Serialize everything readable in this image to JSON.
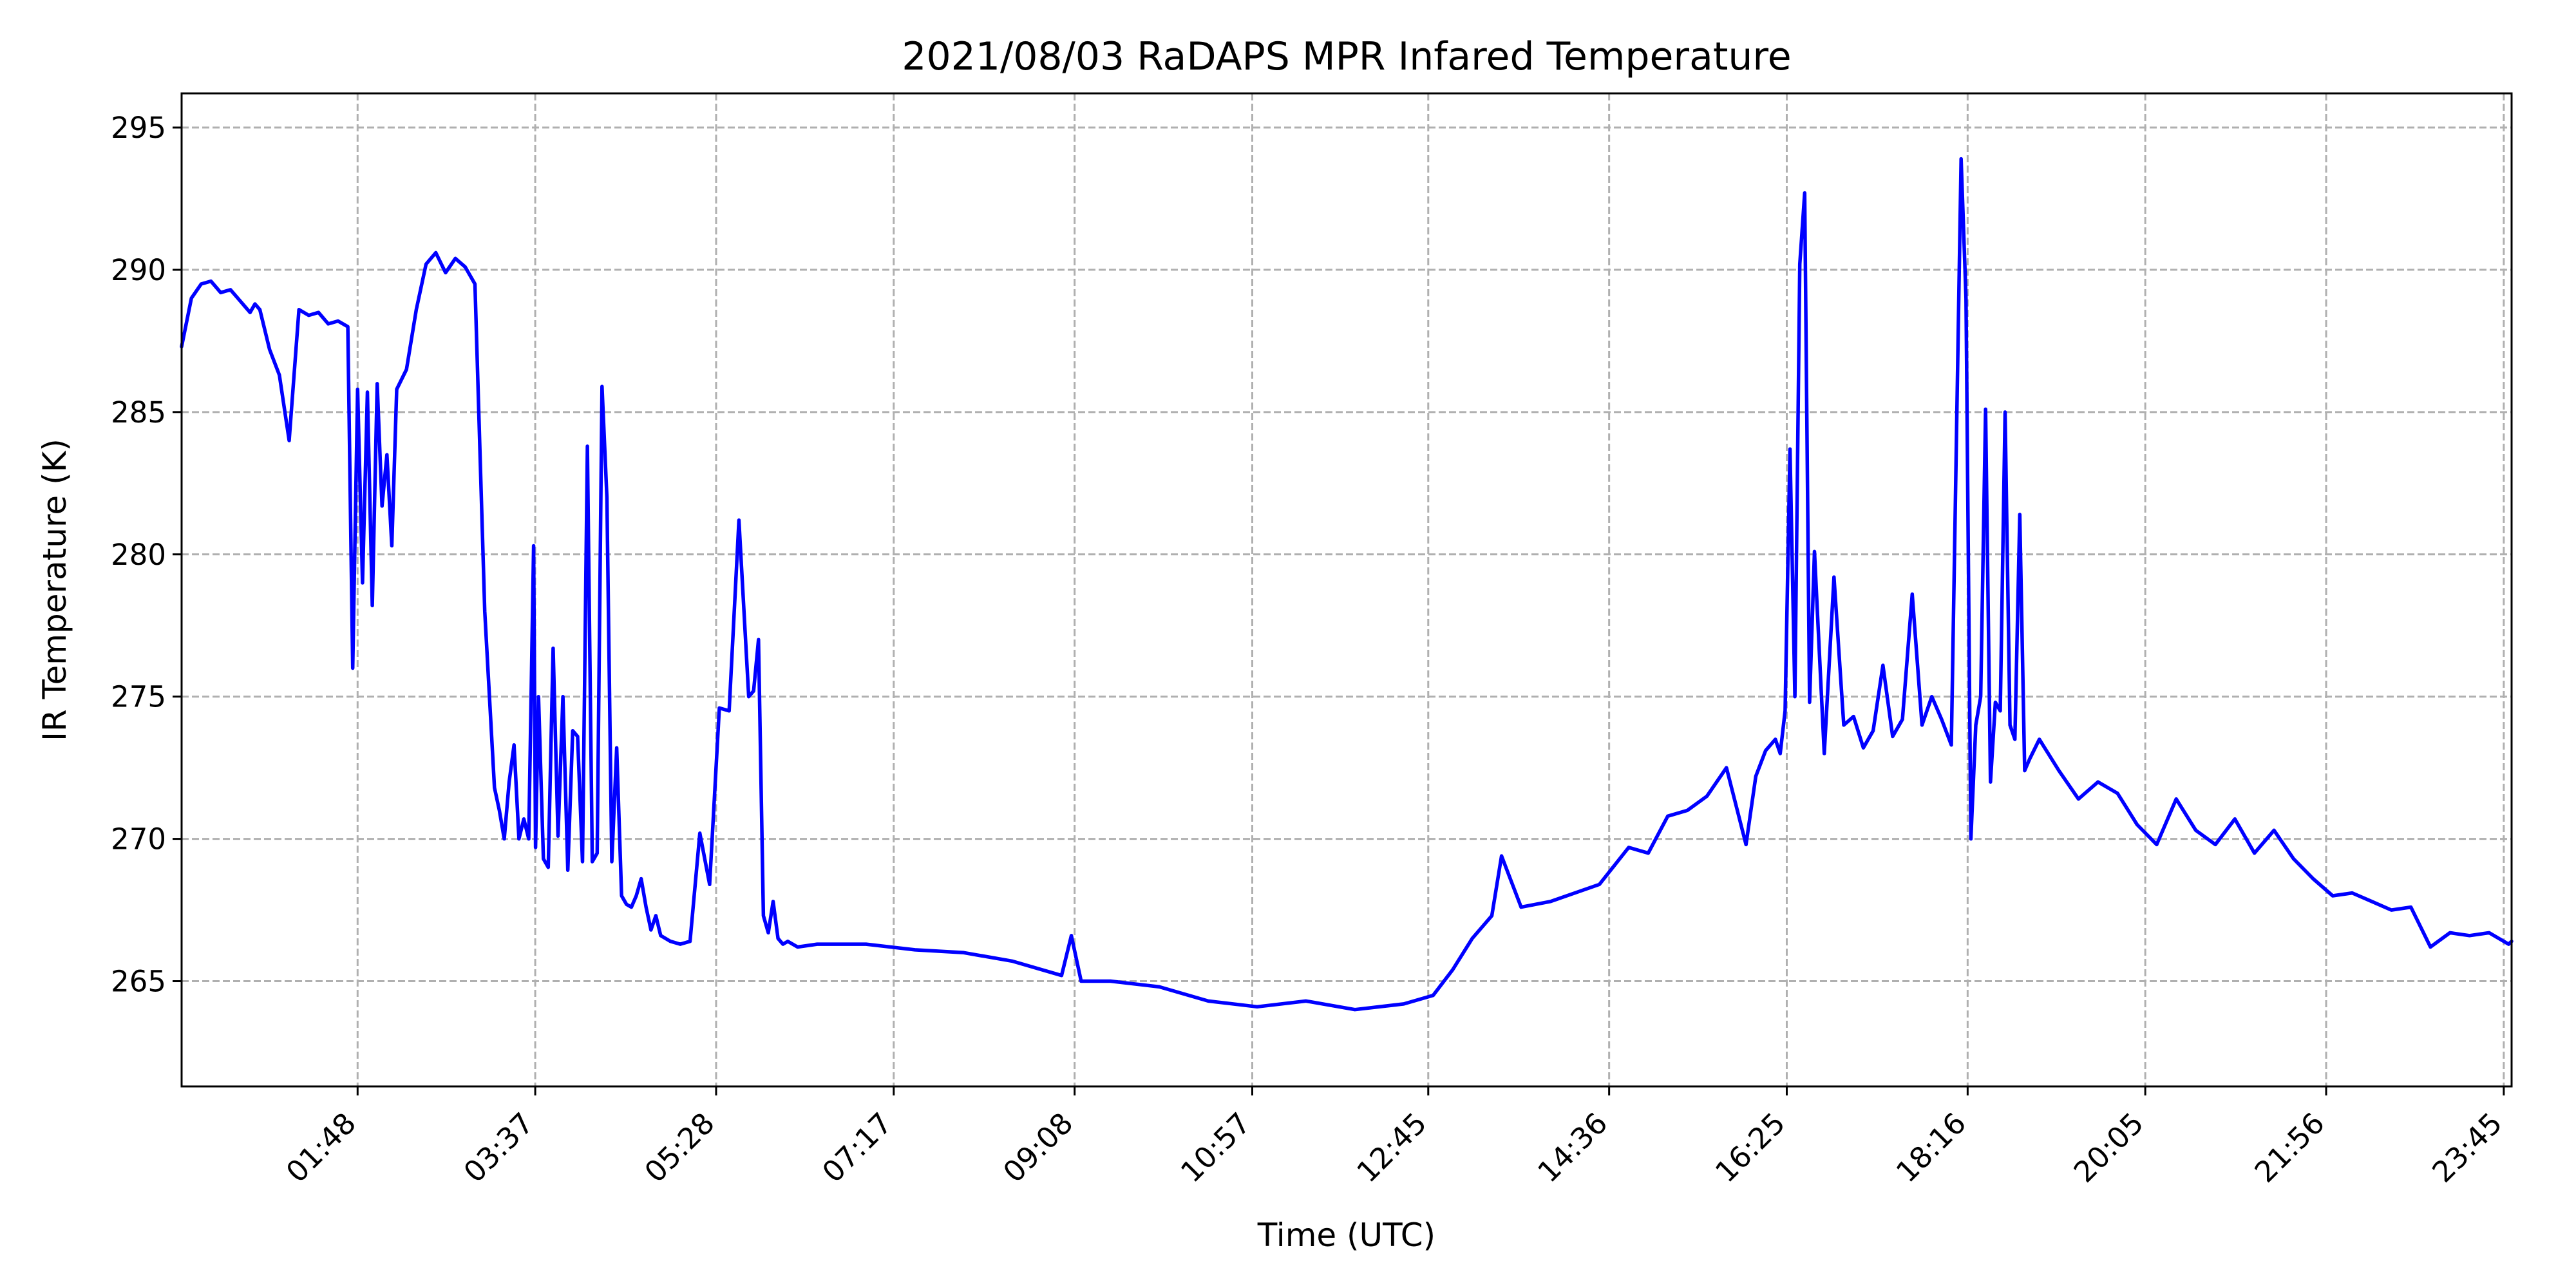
{
  "chart_data": {
    "type": "line",
    "title": "2021/08/03 RaDAPS MPR Infared Temperature",
    "xlabel": "Time (UTC)",
    "ylabel": "IR Temperature (K)",
    "x_unit": "hours UTC",
    "xlim": [
      0.0,
      23.83
    ],
    "ylim": [
      261.3,
      296.2
    ],
    "grid": true,
    "x_ticks": [
      {
        "value": 1.8,
        "label": "01:48"
      },
      {
        "value": 3.6167,
        "label": "03:37"
      },
      {
        "value": 5.4667,
        "label": "05:28"
      },
      {
        "value": 7.2833,
        "label": "07:17"
      },
      {
        "value": 9.1333,
        "label": "09:08"
      },
      {
        "value": 10.95,
        "label": "10:57"
      },
      {
        "value": 12.75,
        "label": "12:45"
      },
      {
        "value": 14.6,
        "label": "14:36"
      },
      {
        "value": 16.4167,
        "label": "16:25"
      },
      {
        "value": 18.2667,
        "label": "18:16"
      },
      {
        "value": 20.0833,
        "label": "20:05"
      },
      {
        "value": 21.9333,
        "label": "21:56"
      },
      {
        "value": 23.75,
        "label": "23:45"
      }
    ],
    "y_ticks": [
      265,
      270,
      275,
      280,
      285,
      290,
      295
    ],
    "series": [
      {
        "color": "#0000ff",
        "x": [
          0.0,
          0.1,
          0.2,
          0.3,
          0.4,
          0.5,
          0.6,
          0.7,
          0.75,
          0.8,
          0.9,
          1.0,
          1.1,
          1.2,
          1.3,
          1.4,
          1.5,
          1.6,
          1.7,
          1.75,
          1.8,
          1.85,
          1.9,
          1.95,
          2.0,
          2.05,
          2.1,
          2.15,
          2.2,
          2.3,
          2.4,
          2.5,
          2.6,
          2.7,
          2.8,
          2.9,
          3.0,
          3.1,
          3.2,
          3.25,
          3.3,
          3.35,
          3.4,
          3.45,
          3.5,
          3.55,
          3.6,
          3.62,
          3.65,
          3.7,
          3.75,
          3.8,
          3.85,
          3.9,
          3.95,
          4.0,
          4.05,
          4.1,
          4.15,
          4.2,
          4.25,
          4.3,
          4.35,
          4.4,
          4.45,
          4.5,
          4.55,
          4.6,
          4.65,
          4.7,
          4.75,
          4.8,
          4.85,
          4.9,
          5.0,
          5.1,
          5.2,
          5.3,
          5.4,
          5.5,
          5.6,
          5.7,
          5.8,
          5.85,
          5.9,
          5.95,
          6.0,
          6.05,
          6.1,
          6.15,
          6.2,
          6.3,
          6.5,
          7.0,
          7.5,
          8.0,
          8.5,
          9.0,
          9.1,
          9.2,
          9.5,
          10.0,
          10.5,
          11.0,
          11.5,
          12.0,
          12.5,
          12.8,
          13.0,
          13.2,
          13.4,
          13.5,
          13.7,
          14.0,
          14.5,
          14.8,
          15.0,
          15.2,
          15.4,
          15.6,
          15.8,
          16.0,
          16.1,
          16.2,
          16.3,
          16.35,
          16.4,
          16.45,
          16.5,
          16.55,
          16.6,
          16.65,
          16.7,
          16.8,
          16.9,
          17.0,
          17.1,
          17.2,
          17.3,
          17.4,
          17.5,
          17.6,
          17.7,
          17.8,
          17.9,
          18.0,
          18.1,
          18.2,
          18.25,
          18.3,
          18.35,
          18.4,
          18.45,
          18.5,
          18.55,
          18.6,
          18.65,
          18.7,
          18.75,
          18.8,
          18.85,
          18.9,
          19.0,
          19.2,
          19.4,
          19.6,
          19.8,
          20.0,
          20.2,
          20.4,
          20.6,
          20.8,
          21.0,
          21.2,
          21.4,
          21.6,
          21.8,
          22.0,
          22.2,
          22.4,
          22.6,
          22.8,
          23.0,
          23.2,
          23.4,
          23.6,
          23.8,
          23.83
        ],
        "values": [
          287.3,
          289.0,
          289.5,
          289.6,
          289.2,
          289.3,
          288.9,
          288.5,
          288.8,
          288.6,
          287.2,
          286.3,
          284.0,
          288.6,
          288.4,
          288.5,
          288.1,
          288.2,
          288.0,
          276.0,
          285.8,
          279.0,
          285.7,
          278.2,
          286.0,
          281.7,
          283.5,
          280.3,
          285.8,
          286.5,
          288.6,
          290.2,
          290.6,
          289.9,
          290.4,
          290.1,
          289.5,
          278.0,
          271.8,
          271.0,
          270.0,
          272.0,
          273.3,
          270.0,
          270.7,
          270.0,
          280.3,
          269.7,
          275.0,
          269.3,
          269.0,
          276.7,
          270.1,
          275.0,
          268.9,
          273.8,
          273.6,
          269.2,
          283.8,
          269.2,
          269.5,
          285.9,
          282.0,
          269.2,
          273.2,
          268.0,
          267.7,
          267.6,
          268.0,
          268.6,
          267.6,
          266.8,
          267.3,
          266.6,
          266.4,
          266.3,
          266.4,
          270.2,
          268.4,
          274.6,
          274.5,
          281.2,
          275.0,
          275.2,
          277.0,
          267.3,
          266.7,
          267.8,
          266.5,
          266.3,
          266.4,
          266.2,
          266.3,
          266.3,
          266.1,
          266.0,
          265.7,
          265.2,
          266.6,
          265.0,
          265.0,
          264.8,
          264.3,
          264.1,
          264.3,
          264.0,
          264.2,
          264.5,
          265.4,
          266.5,
          267.3,
          269.4,
          267.6,
          267.8,
          268.4,
          269.7,
          269.5,
          270.8,
          271.0,
          271.5,
          272.5,
          269.8,
          272.2,
          273.1,
          273.5,
          273.0,
          274.5,
          283.7,
          275.0,
          290.2,
          292.7,
          274.8,
          280.1,
          273.0,
          279.2,
          274.0,
          274.3,
          273.2,
          273.8,
          276.1,
          273.6,
          274.2,
          278.6,
          274.0,
          275.0,
          274.2,
          273.3,
          293.9,
          289.0,
          270.0,
          274.0,
          275.0,
          285.1,
          272.0,
          274.8,
          274.5,
          285.0,
          274.0,
          273.5,
          281.4,
          272.4,
          272.8,
          273.5,
          272.4,
          271.4,
          272.0,
          271.6,
          270.5,
          269.8,
          271.4,
          270.3,
          269.8,
          270.7,
          269.5,
          270.3,
          269.3,
          268.6,
          268.0,
          268.1,
          267.8,
          267.5,
          267.6,
          266.2,
          266.7,
          266.6,
          266.7,
          266.3,
          266.4
        ]
      }
    ]
  }
}
